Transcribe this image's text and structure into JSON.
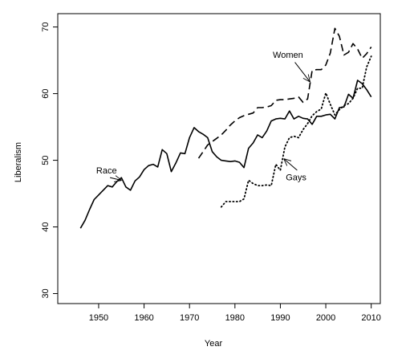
{
  "chart_data": {
    "type": "line",
    "xlabel": "Year",
    "ylabel": "Liberalism",
    "xlim": [
      1941,
      2012
    ],
    "ylim": [
      28.5,
      72
    ],
    "x_ticks": [
      1950,
      1960,
      1970,
      1980,
      1990,
      2000,
      2010
    ],
    "y_ticks": [
      30,
      40,
      50,
      60,
      70
    ],
    "x_tick_labels": [
      "1950",
      "1960",
      "1970",
      "1980",
      "1990",
      "2000",
      "2010"
    ],
    "y_tick_labels": [
      "30",
      "40",
      "50",
      "60",
      "70"
    ],
    "series": [
      {
        "name": "Race",
        "style": "solid",
        "points": [
          [
            1946,
            39.8
          ],
          [
            1947,
            41.0
          ],
          [
            1948,
            42.6
          ],
          [
            1949,
            44.1
          ],
          [
            1950,
            44.8
          ],
          [
            1951,
            45.5
          ],
          [
            1952,
            46.2
          ],
          [
            1953,
            46.0
          ],
          [
            1954,
            46.8
          ],
          [
            1955,
            47.4
          ],
          [
            1956,
            46.0
          ],
          [
            1957,
            45.5
          ],
          [
            1958,
            46.9
          ],
          [
            1959,
            47.5
          ],
          [
            1960,
            48.6
          ],
          [
            1961,
            49.2
          ],
          [
            1962,
            49.4
          ],
          [
            1963,
            49.0
          ],
          [
            1964,
            51.6
          ],
          [
            1965,
            51.0
          ],
          [
            1966,
            48.3
          ],
          [
            1967,
            49.6
          ],
          [
            1968,
            51.1
          ],
          [
            1969,
            51.0
          ],
          [
            1970,
            53.4
          ],
          [
            1971,
            54.9
          ],
          [
            1972,
            54.3
          ],
          [
            1973,
            53.9
          ],
          [
            1974,
            53.4
          ],
          [
            1975,
            51.3
          ],
          [
            1976,
            50.5
          ],
          [
            1977,
            50.0
          ],
          [
            1978,
            49.9
          ],
          [
            1979,
            49.8
          ],
          [
            1980,
            49.9
          ],
          [
            1981,
            49.7
          ],
          [
            1982,
            48.9
          ],
          [
            1983,
            51.8
          ],
          [
            1984,
            52.6
          ],
          [
            1985,
            53.8
          ],
          [
            1986,
            53.4
          ],
          [
            1987,
            54.4
          ],
          [
            1988,
            55.9
          ],
          [
            1989,
            56.2
          ],
          [
            1990,
            56.3
          ],
          [
            1991,
            56.2
          ],
          [
            1992,
            57.4
          ],
          [
            1993,
            56.2
          ],
          [
            1994,
            56.6
          ],
          [
            1995,
            56.3
          ],
          [
            1996,
            56.2
          ],
          [
            1997,
            55.4
          ],
          [
            1998,
            56.6
          ],
          [
            1999,
            56.6
          ],
          [
            2000,
            56.8
          ],
          [
            2001,
            56.9
          ],
          [
            2002,
            56.2
          ],
          [
            2003,
            57.9
          ],
          [
            2004,
            58.0
          ],
          [
            2005,
            59.9
          ],
          [
            2006,
            59.3
          ],
          [
            2007,
            62.0
          ],
          [
            2008,
            61.5
          ],
          [
            2009,
            60.6
          ],
          [
            2010,
            59.5
          ]
        ]
      },
      {
        "name": "Women",
        "style": "dashed",
        "points": [
          [
            1972,
            50.3
          ],
          [
            1973,
            51.3
          ],
          [
            1974,
            52.3
          ],
          [
            1975,
            52.8
          ],
          [
            1976,
            53.3
          ],
          [
            1977,
            53.8
          ],
          [
            1978,
            54.5
          ],
          [
            1979,
            55.3
          ],
          [
            1980,
            55.9
          ],
          [
            1981,
            56.4
          ],
          [
            1982,
            56.7
          ],
          [
            1983,
            56.9
          ],
          [
            1984,
            57.1
          ],
          [
            1985,
            57.9
          ],
          [
            1986,
            57.9
          ],
          [
            1987,
            58.0
          ],
          [
            1988,
            58.2
          ],
          [
            1989,
            59.0
          ],
          [
            1990,
            59.1
          ],
          [
            1991,
            59.1
          ],
          [
            1992,
            59.2
          ],
          [
            1993,
            59.3
          ],
          [
            1994,
            59.5
          ],
          [
            1995,
            58.7
          ],
          [
            1996,
            59.2
          ],
          [
            1997,
            63.5
          ],
          [
            1998,
            63.6
          ],
          [
            1999,
            63.6
          ],
          [
            2000,
            64.3
          ],
          [
            2001,
            66.1
          ],
          [
            2002,
            69.8
          ],
          [
            2003,
            68.6
          ],
          [
            2004,
            65.8
          ],
          [
            2005,
            66.2
          ],
          [
            2006,
            67.5
          ],
          [
            2007,
            66.7
          ],
          [
            2008,
            65.3
          ],
          [
            2009,
            66.0
          ],
          [
            2010,
            67.0
          ]
        ]
      },
      {
        "name": "Gays",
        "style": "dotted",
        "points": [
          [
            1977,
            43.0
          ],
          [
            1978,
            43.8
          ],
          [
            1979,
            43.8
          ],
          [
            1980,
            43.8
          ],
          [
            1981,
            43.8
          ],
          [
            1982,
            44.2
          ],
          [
            1983,
            47.0
          ],
          [
            1984,
            46.5
          ],
          [
            1985,
            46.2
          ],
          [
            1986,
            46.2
          ],
          [
            1987,
            46.3
          ],
          [
            1988,
            46.2
          ],
          [
            1989,
            49.4
          ],
          [
            1990,
            48.5
          ],
          [
            1991,
            52.0
          ],
          [
            1992,
            53.4
          ],
          [
            1993,
            53.6
          ],
          [
            1994,
            53.4
          ],
          [
            1995,
            54.6
          ],
          [
            1996,
            55.5
          ],
          [
            1997,
            56.7
          ],
          [
            1998,
            57.3
          ],
          [
            1999,
            57.7
          ],
          [
            2000,
            60.1
          ],
          [
            2001,
            58.4
          ],
          [
            2002,
            56.8
          ],
          [
            2003,
            57.6
          ],
          [
            2004,
            58.2
          ],
          [
            2005,
            58.5
          ],
          [
            2006,
            59.3
          ],
          [
            2007,
            60.8
          ],
          [
            2008,
            60.8
          ],
          [
            2009,
            64.0
          ],
          [
            2010,
            65.6
          ]
        ]
      }
    ],
    "annotations": [
      {
        "text": "Race",
        "label_at": [
          1954.0,
          48.0
        ],
        "arrow_from": [
          1952.5,
          47.4
        ],
        "arrow_to": [
          1955.0,
          47.0
        ],
        "anchor": "end"
      },
      {
        "text": "Women",
        "label_at": [
          1995.0,
          65.4
        ],
        "arrow_from": [
          1993.2,
          64.7
        ],
        "arrow_to": [
          1996.5,
          61.8
        ],
        "anchor": "end"
      },
      {
        "text": "Gays",
        "label_at": [
          1991.2,
          47.0
        ],
        "arrow_from": [
          1993.7,
          48.5
        ],
        "arrow_to": [
          1990.8,
          50.2
        ],
        "anchor": "start"
      }
    ],
    "grid": false,
    "legend": "none"
  }
}
